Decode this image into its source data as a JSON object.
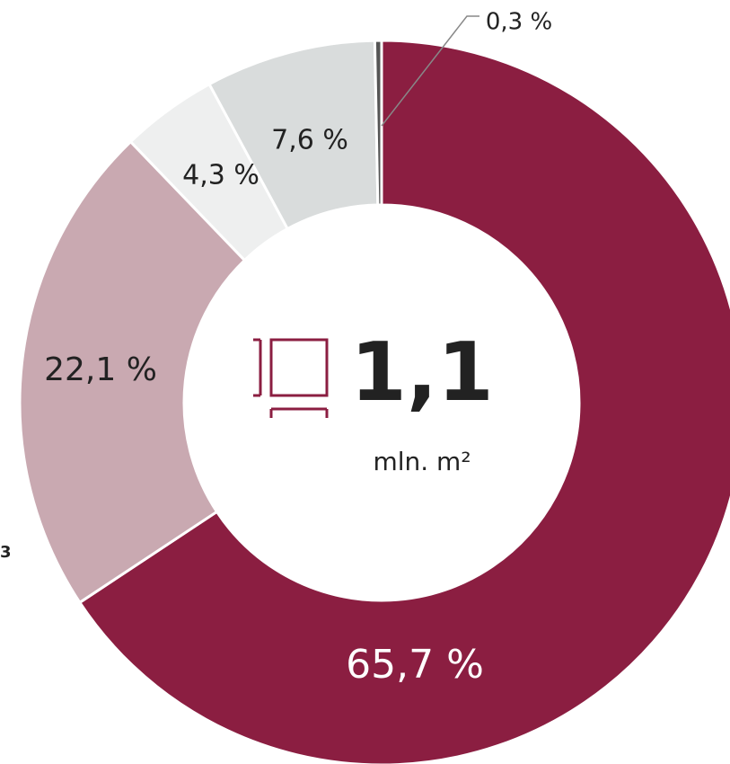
{
  "chart_data": {
    "type": "donut",
    "categories": [
      null,
      null,
      null,
      null,
      null
    ],
    "values": [
      65.7,
      22.1,
      4.3,
      7.6,
      0.3
    ],
    "value_labels": [
      "65,7 %",
      "22,1 %",
      "4,3 %",
      "7,6 %",
      "0,3 %"
    ],
    "colors": [
      "#8b1e41",
      "#c9a9b1",
      "#eeefef",
      "#d9dcdc",
      "#555555"
    ],
    "center_value": "1,1",
    "center_unit": "mln. m²",
    "side_text": "3"
  }
}
